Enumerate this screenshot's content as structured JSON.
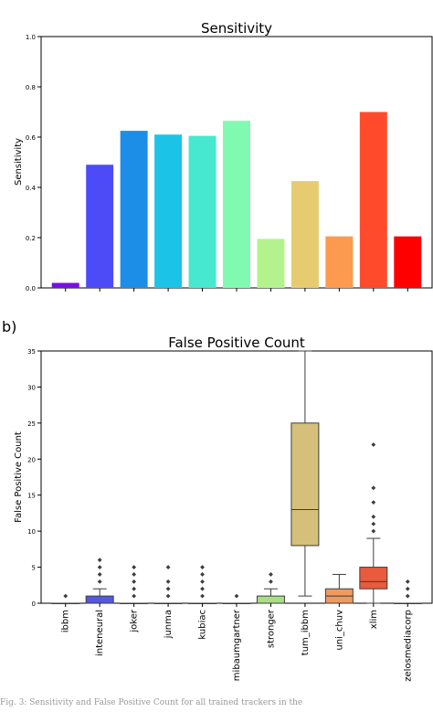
{
  "panel_b_label": "b)",
  "caption": "Fig. 3: Sensitivity and False Positive Count for all trained trackers in the",
  "chart_data": [
    {
      "type": "bar",
      "title": "Sensitivity",
      "ylabel": "Sensitivity",
      "xlabel": "",
      "ylim": [
        0,
        1.0
      ],
      "yticks": [
        "0.0",
        "0.2",
        "0.4",
        "0.6",
        "0.8",
        "1.0"
      ],
      "categories": [
        "ibbm",
        "inteneural",
        "joker",
        "junma",
        "kubiac",
        "mibaumgartner",
        "stronger",
        "tum_ibbm",
        "uni_chuv",
        "xlim",
        "zelosmediacorp"
      ],
      "values": [
        0.02,
        0.49,
        0.625,
        0.61,
        0.605,
        0.665,
        0.195,
        0.425,
        0.205,
        0.7,
        0.205
      ],
      "colors": [
        "#7a0ee6",
        "#4c4bf7",
        "#1d8ee7",
        "#1bc4e6",
        "#46e9cf",
        "#80fab0",
        "#b4f28e",
        "#e6cb71",
        "#fc9a4f",
        "#ff4b2c",
        "#ff0000"
      ]
    },
    {
      "type": "box",
      "title": "False Positive Count",
      "ylabel": "False Positive Count",
      "xlabel": "",
      "ylim": [
        0,
        35
      ],
      "yticks": [
        "0",
        "5",
        "10",
        "15",
        "20",
        "25",
        "30",
        "35"
      ],
      "categories": [
        "ibbm",
        "inteneural",
        "joker",
        "junma",
        "kubiac",
        "mibaumgartner",
        "stronger",
        "tum_ibbm",
        "uni_chuv",
        "xlim",
        "zelosmediacorp"
      ],
      "colors": [
        "#7a0ee6",
        "#5558e2",
        "#3b9fd8",
        "#3fc6d9",
        "#57dcc4",
        "#8de8b0",
        "#a8df86",
        "#d4c07a",
        "#f09a5e",
        "#ea5a3c",
        "#e03a2a"
      ],
      "boxes": [
        {
          "q1": 0,
          "median": 0,
          "q3": 0,
          "whislo": 0,
          "whishi": 0,
          "fliers": [
            1
          ]
        },
        {
          "q1": 0,
          "median": 0,
          "q3": 1,
          "whislo": 0,
          "whishi": 2,
          "fliers": [
            3,
            4,
            5,
            6
          ]
        },
        {
          "q1": 0,
          "median": 0,
          "q3": 0,
          "whislo": 0,
          "whishi": 0,
          "fliers": [
            1,
            2,
            3,
            4,
            5
          ]
        },
        {
          "q1": 0,
          "median": 0,
          "q3": 0,
          "whislo": 0,
          "whishi": 0,
          "fliers": [
            1,
            2,
            3,
            5
          ]
        },
        {
          "q1": 0,
          "median": 0,
          "q3": 0,
          "whislo": 0,
          "whishi": 0,
          "fliers": [
            1,
            2,
            3,
            4,
            5
          ]
        },
        {
          "q1": 0,
          "median": 0,
          "q3": 0,
          "whislo": 0,
          "whishi": 0,
          "fliers": [
            1
          ]
        },
        {
          "q1": 0,
          "median": 0,
          "q3": 1,
          "whislo": 0,
          "whishi": 2,
          "fliers": [
            3,
            4
          ]
        },
        {
          "q1": 8,
          "median": 13,
          "q3": 25,
          "whislo": 1,
          "whishi": 35,
          "fliers": []
        },
        {
          "q1": 0,
          "median": 1,
          "q3": 2,
          "whislo": 0,
          "whishi": 4,
          "fliers": []
        },
        {
          "q1": 2,
          "median": 3,
          "q3": 5,
          "whislo": 0,
          "whishi": 9,
          "fliers": [
            10,
            11,
            12,
            14,
            16,
            22
          ]
        },
        {
          "q1": 0,
          "median": 0,
          "q3": 0,
          "whislo": 0,
          "whishi": 0,
          "fliers": [
            1,
            2,
            3
          ]
        }
      ]
    }
  ]
}
